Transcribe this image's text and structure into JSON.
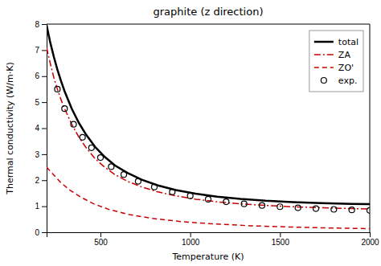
{
  "chart_data": {
    "type": "line",
    "title": "graphite (z direction)",
    "xlabel": "Temperature (K)",
    "ylabel": "Thermal conductivity (W/m·K)",
    "xlim": [
      200,
      2000
    ],
    "ylim": [
      0,
      8
    ],
    "xticks": [
      500,
      1000,
      1500,
      2000
    ],
    "yticks": [
      0,
      1,
      2,
      3,
      4,
      5,
      6,
      7,
      8
    ],
    "grid": false,
    "legend": "upper right",
    "series": [
      {
        "name": "total",
        "type": "line",
        "color": "#000000",
        "line_style": "solid",
        "x": [
          200,
          220,
          240,
          260,
          280,
          300,
          340,
          380,
          420,
          470,
          520,
          580,
          650,
          730,
          820,
          920,
          1030,
          1150,
          1280,
          1420,
          1570,
          1730,
          1900,
          2000
        ],
        "values": [
          7.95,
          7.3,
          6.75,
          6.25,
          5.82,
          5.42,
          4.75,
          4.2,
          3.75,
          3.28,
          2.92,
          2.57,
          2.28,
          2.02,
          1.8,
          1.62,
          1.48,
          1.37,
          1.28,
          1.21,
          1.16,
          1.12,
          1.09,
          1.08
        ]
      },
      {
        "name": "ZA",
        "type": "line",
        "color": "#cc0000",
        "line_style": "dashdot",
        "x": [
          200,
          220,
          240,
          260,
          280,
          300,
          340,
          380,
          420,
          470,
          520,
          580,
          650,
          730,
          820,
          920,
          1030,
          1150,
          1280,
          1420,
          1570,
          1730,
          1900,
          2000
        ],
        "values": [
          7.1,
          6.5,
          5.95,
          5.5,
          5.1,
          4.75,
          4.15,
          3.65,
          3.25,
          2.83,
          2.52,
          2.22,
          1.96,
          1.74,
          1.55,
          1.4,
          1.27,
          1.17,
          1.09,
          1.03,
          0.98,
          0.94,
          0.91,
          0.89
        ]
      },
      {
        "name": "ZO'",
        "type": "line",
        "color": "#cc0000",
        "line_style": "dashed",
        "x": [
          200,
          240,
          280,
          330,
          390,
          460,
          550,
          660,
          790,
          950,
          1130,
          1330,
          1560,
          1800,
          2000
        ],
        "values": [
          2.5,
          2.2,
          1.9,
          1.62,
          1.35,
          1.1,
          0.87,
          0.68,
          0.53,
          0.41,
          0.32,
          0.25,
          0.2,
          0.16,
          0.14
        ]
      },
      {
        "name": "exp.",
        "type": "scatter",
        "color": "#000000",
        "marker": "circle",
        "x": [
          260,
          300,
          350,
          400,
          450,
          500,
          560,
          630,
          710,
          800,
          900,
          1000,
          1100,
          1200,
          1300,
          1400,
          1500,
          1600,
          1700,
          1800,
          1900,
          2000
        ],
        "values": [
          5.5,
          4.75,
          4.15,
          3.65,
          3.25,
          2.87,
          2.52,
          2.22,
          1.96,
          1.74,
          1.55,
          1.4,
          1.27,
          1.17,
          1.09,
          1.03,
          0.98,
          0.94,
          0.91,
          0.88,
          0.86,
          0.84
        ]
      }
    ]
  }
}
